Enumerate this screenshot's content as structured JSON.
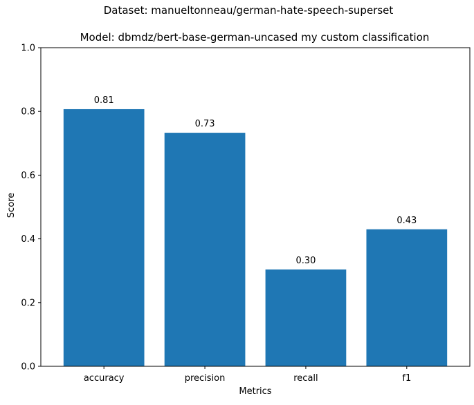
{
  "chart_data": {
    "type": "bar",
    "title": "Dataset: manueltonneau/german-hate-speech-superset",
    "subtitle": "Model: dbmdz/bert-base-german-uncased my custom classification",
    "xlabel": "Metrics",
    "ylabel": "Score",
    "categories": [
      "accuracy",
      "precision",
      "recall",
      "f1"
    ],
    "values": [
      0.807,
      0.733,
      0.304,
      0.43
    ],
    "data_labels": [
      "0.81",
      "0.73",
      "0.30",
      "0.43"
    ],
    "ylim": [
      0,
      1
    ],
    "yticks": [
      0.0,
      0.2,
      0.4,
      0.6,
      0.8,
      1.0
    ],
    "ytick_labels": [
      "0.0",
      "0.2",
      "0.4",
      "0.6",
      "0.8",
      "1.0"
    ],
    "grid": false,
    "bar_color": "#1f77b4"
  }
}
